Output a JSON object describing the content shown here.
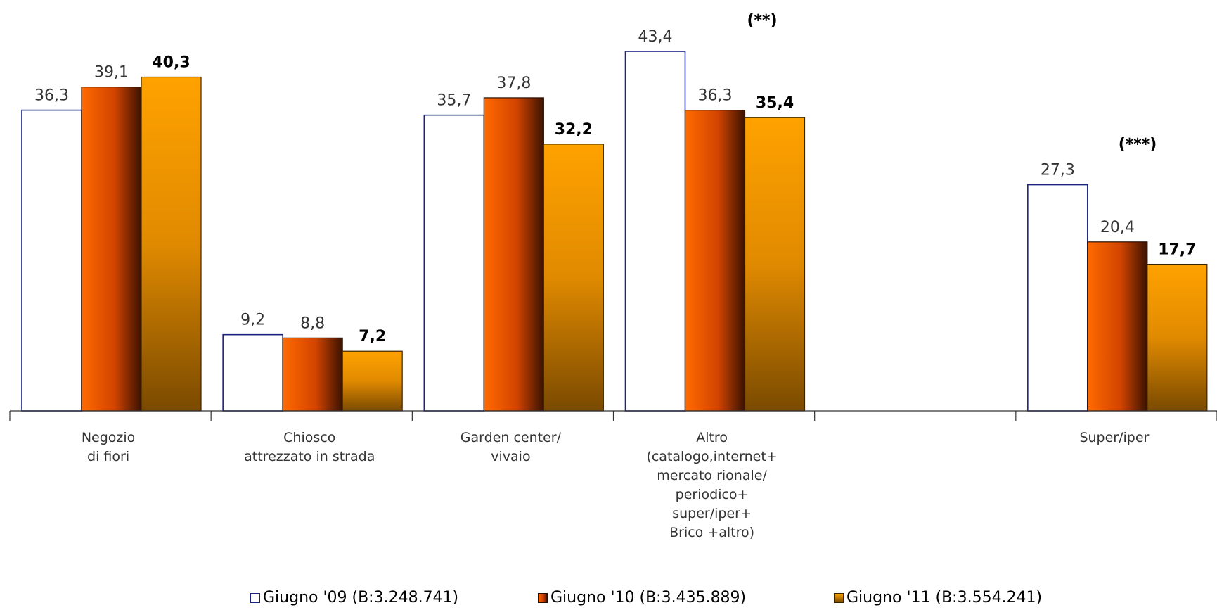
{
  "chart_data": {
    "type": "bar",
    "categories": [
      [
        "Negozio",
        "di fiori"
      ],
      [
        "Chiosco",
        "attrezzato in strada"
      ],
      [
        "Garden center/",
        "vivaio"
      ],
      [
        "Altro",
        "(catalogo,internet+",
        "mercato rionale/",
        "periodico+",
        "super/iper+",
        "Brico +altro)"
      ],
      [],
      [
        "Super/iper"
      ]
    ],
    "series": [
      {
        "name": "Giugno '09 (B:3.248.741)",
        "values": [
          36.3,
          9.2,
          35.7,
          43.4,
          null,
          27.3
        ],
        "labels": [
          "36,3",
          "9,2",
          "35,7",
          "43,4",
          "",
          "27,3"
        ],
        "color": "#ffffff",
        "stroke": "#1a237e"
      },
      {
        "name": "Giugno '10 (B:3.435.889)",
        "values": [
          39.1,
          8.8,
          37.8,
          36.3,
          null,
          20.4
        ],
        "labels": [
          "39,1",
          "8,8",
          "37,8",
          "36,3",
          "",
          "20,4"
        ],
        "color": "#e85a0c",
        "stroke": "#2a0e00"
      },
      {
        "name": "Giugno '11 (B:3.554.241)",
        "values": [
          40.3,
          7.2,
          32.2,
          35.4,
          null,
          17.7
        ],
        "labels": [
          "40,3",
          "7,2",
          "32,2",
          "35,4",
          "",
          "17,7"
        ],
        "color": "#f39a00",
        "stroke": "#3a2400"
      }
    ],
    "annotations": [
      {
        "text": "(**)",
        "category_index": 3
      },
      {
        "text": "(***)",
        "category_index": 5
      }
    ],
    "ylim": [
      0,
      50
    ],
    "grid": false,
    "legend": "bottom",
    "bold_series_index": 2
  }
}
